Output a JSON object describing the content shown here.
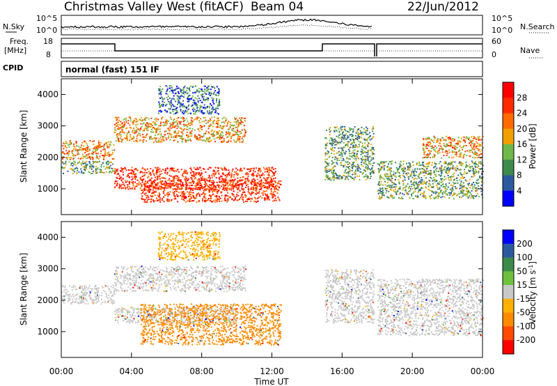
{
  "header": {
    "station": "Christmas Valley West (fitACF)",
    "beam": "Beam 04",
    "date": "22/Jun/2012"
  },
  "top_panels": {
    "nsky_label": "N.Sky",
    "noise_ticks_left": [
      "10^5",
      "10^0"
    ],
    "noise_ticks_right": [
      "10^5",
      "10^0"
    ],
    "nsearch_label": "N.Search",
    "freq_label": "Freq.",
    "freq_unit": "[MHz]",
    "freq_ticks": [
      "18",
      "8"
    ],
    "nave_ticks": [
      "60",
      "0"
    ],
    "nave_label": "Nave",
    "cpid_label": "CPID",
    "cpid_value": "normal (fast) 151 IF"
  },
  "colors": {
    "power": [
      "#0000ff",
      "#2c5aa0",
      "#3d8a4a",
      "#6fb84a",
      "#f2a000",
      "#ff6a00",
      "#ff2a00",
      "#ff0000"
    ],
    "velocity": [
      "#ff0000",
      "#ff4a00",
      "#ff8a00",
      "#ffb000",
      "#c8c8c8",
      "#70c040",
      "#3d8a4a",
      "#2c5aa0",
      "#0000ff"
    ],
    "trace": "#000000"
  },
  "chart_data": [
    {
      "type": "heatmap",
      "panel": "power",
      "ylabel": "Slant Range [km]",
      "yticks": [
        "1000",
        "2000",
        "3000",
        "4000"
      ],
      "ylim": [
        180,
        4500
      ],
      "xlim_hours": [
        0,
        24
      ],
      "colorbar_label": "Power [dB]",
      "colorbar_ticks": [
        "4",
        "8",
        "12",
        "16",
        "20",
        "24",
        "28"
      ],
      "colorbar_range": [
        0,
        32
      ],
      "regions": [
        {
          "from_h": 0.0,
          "to_h": 3.0,
          "range_km": [
            1950,
            2550
          ],
          "level": "high"
        },
        {
          "from_h": 0.0,
          "to_h": 3.0,
          "range_km": [
            1500,
            1900
          ],
          "level": "medium"
        },
        {
          "from_h": 3.0,
          "to_h": 12.2,
          "range_km": [
            1000,
            1700
          ],
          "level": "very-high"
        },
        {
          "from_h": 4.5,
          "to_h": 12.5,
          "range_km": [
            600,
            1300
          ],
          "level": "very-high"
        },
        {
          "from_h": 3.0,
          "to_h": 10.5,
          "range_km": [
            2500,
            3300
          ],
          "level": "high"
        },
        {
          "from_h": 5.5,
          "to_h": 9.0,
          "range_km": [
            3400,
            4300
          ],
          "level": "low"
        },
        {
          "from_h": 15.0,
          "to_h": 17.8,
          "range_km": [
            1300,
            3000
          ],
          "level": "medium"
        },
        {
          "from_h": 18.0,
          "to_h": 24.0,
          "range_km": [
            700,
            1900
          ],
          "level": "medium"
        },
        {
          "from_h": 20.5,
          "to_h": 24.0,
          "range_km": [
            2000,
            2700
          ],
          "level": "high"
        }
      ]
    },
    {
      "type": "heatmap",
      "panel": "velocity",
      "ylabel": "Slant Range [km]",
      "yticks": [
        "1000",
        "2000",
        "3000",
        "4000"
      ],
      "ylim": [
        180,
        4500
      ],
      "xlim_hours": [
        0,
        24
      ],
      "xlabel": "Time UT",
      "xticks": [
        "00:00",
        "04:00",
        "08:00",
        "12:00",
        "16:00",
        "20:00",
        "00:00"
      ],
      "colorbar_label": "Velocity [m s",
      "colorbar_ticks": [
        "200",
        "100",
        "50",
        "15",
        "-15",
        "-50",
        "-100",
        "-200"
      ],
      "colorbar_range": [
        -250,
        250
      ],
      "regions": [
        {
          "from_h": 0.0,
          "to_h": 3.0,
          "range_km": [
            1900,
            2500
          ],
          "velocity": 0
        },
        {
          "from_h": 3.0,
          "to_h": 10.0,
          "range_km": [
            1300,
            1800
          ],
          "velocity": 0
        },
        {
          "from_h": 4.5,
          "to_h": 12.5,
          "range_km": [
            600,
            1900
          ],
          "velocity": -60
        },
        {
          "from_h": 3.0,
          "to_h": 10.5,
          "range_km": [
            2300,
            3100
          ],
          "velocity": 0
        },
        {
          "from_h": 5.5,
          "to_h": 9.0,
          "range_km": [
            3300,
            4200
          ],
          "velocity": -40
        },
        {
          "from_h": 15.0,
          "to_h": 17.8,
          "range_km": [
            1300,
            3000
          ],
          "velocity": 0
        },
        {
          "from_h": 18.0,
          "to_h": 24.0,
          "range_km": [
            900,
            2700
          ],
          "velocity": 0
        }
      ]
    }
  ]
}
